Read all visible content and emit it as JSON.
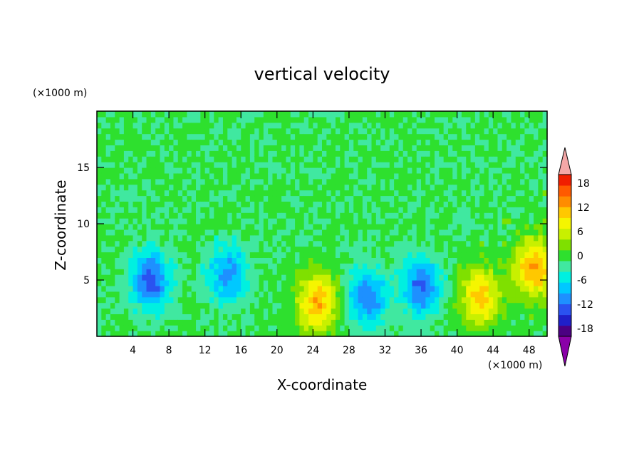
{
  "chart_data": {
    "type": "heatmap",
    "title": "vertical velocity",
    "xlabel": "X-coordinate",
    "ylabel": "Z-coordinate",
    "x_unit": "(×1000 m)",
    "y_unit": "(×1000 m)",
    "xlim": [
      0,
      50
    ],
    "ylim": [
      0,
      20
    ],
    "xticks": [
      4,
      8,
      12,
      16,
      20,
      24,
      28,
      32,
      36,
      40,
      44,
      48
    ],
    "yticks": [
      5,
      10,
      15
    ],
    "colorbar": {
      "labels": [
        "18",
        "12",
        "6",
        "0",
        "-6",
        "-12",
        "-18"
      ],
      "levels": [
        -21,
        -18,
        -15,
        -12,
        -9,
        -6,
        -3,
        0,
        3,
        6,
        9,
        12,
        15,
        18,
        21
      ],
      "colors": [
        "#8a00a8",
        "#4b0082",
        "#1f1fc8",
        "#2a52f0",
        "#1e90ff",
        "#00c8ff",
        "#00f0e0",
        "#40e8a0",
        "#2ee02e",
        "#7fe000",
        "#c8f000",
        "#f5f500",
        "#ffc800",
        "#ff8c00",
        "#ff5a00",
        "#f01e00",
        "#f4a7a7"
      ]
    },
    "features": [
      {
        "x": 6.0,
        "z": 5.0,
        "w": -14
      },
      {
        "x": 14.5,
        "z": 5.5,
        "w": -11
      },
      {
        "x": 30.0,
        "z": 3.5,
        "w": -12
      },
      {
        "x": 36.0,
        "z": 4.5,
        "w": -13
      },
      {
        "x": 24.5,
        "z": 3.0,
        "w": 14
      },
      {
        "x": 42.5,
        "z": 3.5,
        "w": 13
      },
      {
        "x": 48.5,
        "z": 6.0,
        "w": 15
      }
    ]
  }
}
